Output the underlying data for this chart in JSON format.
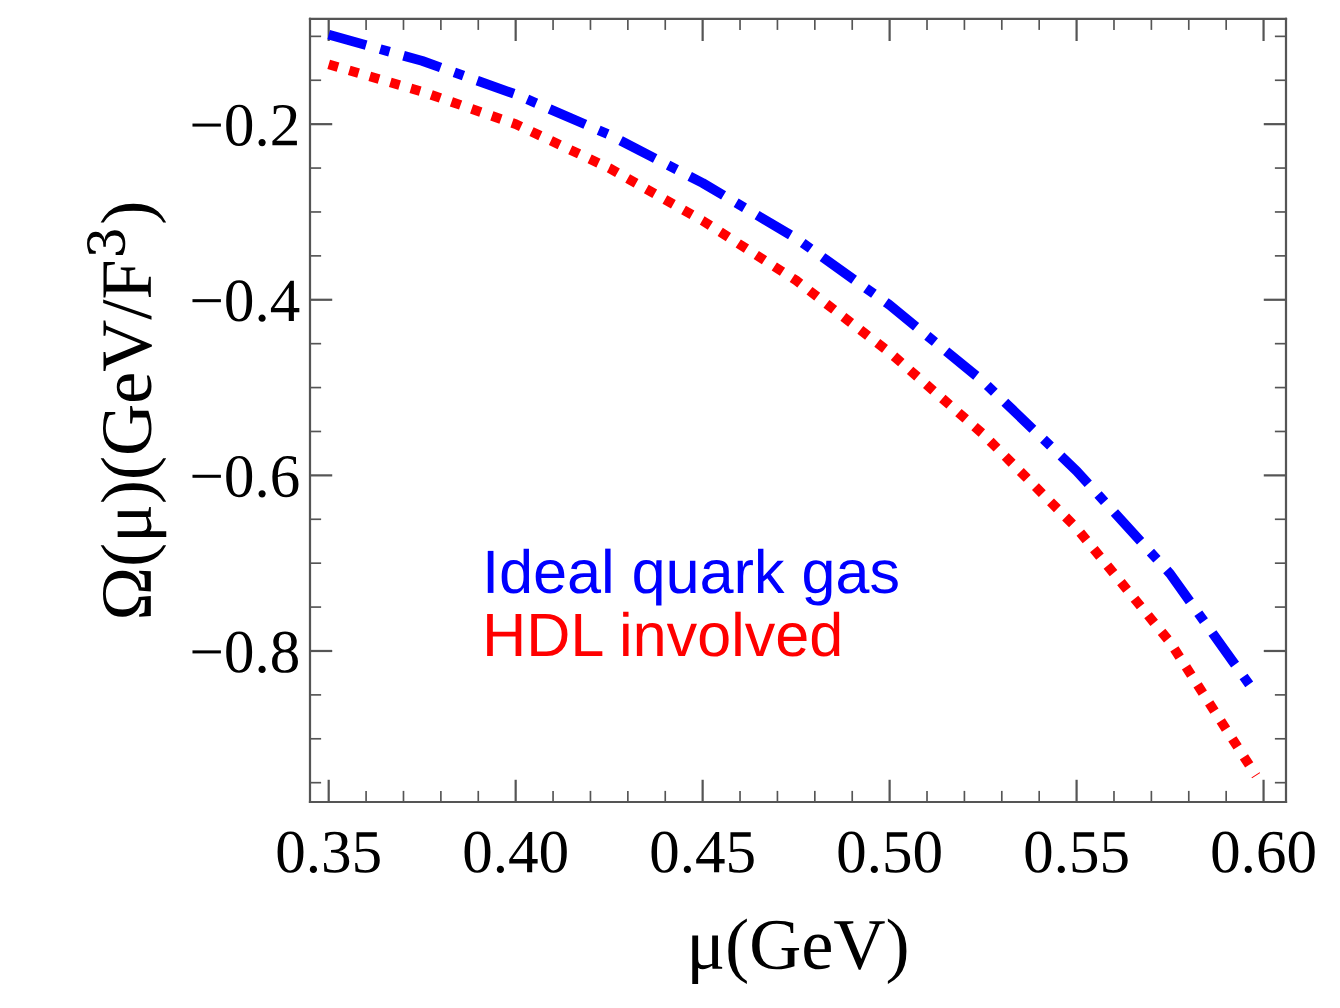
{
  "chart_data": {
    "type": "line",
    "xlabel": "μ(GeV)",
    "ylabel": "Ω(μ)(GeV/F$^{3}$)",
    "series": [
      {
        "name": "Ideal quark gas",
        "color": "#0000ff",
        "line_style": "dashdot",
        "x": [
          0.35,
          0.375,
          0.4,
          0.425,
          0.45,
          0.475,
          0.5,
          0.525,
          0.55,
          0.575,
          0.598
        ],
        "values": [
          -0.098,
          -0.128,
          -0.166,
          -0.212,
          -0.267,
          -0.33,
          -0.406,
          -0.493,
          -0.595,
          -0.712,
          -0.849
        ]
      },
      {
        "name": "HDL involved",
        "color": "#ff0000",
        "line_style": "dotted",
        "x": [
          0.35,
          0.375,
          0.4,
          0.425,
          0.45,
          0.475,
          0.5,
          0.525,
          0.55,
          0.575,
          0.598
        ],
        "values": [
          -0.132,
          -0.163,
          -0.2,
          -0.25,
          -0.31,
          -0.378,
          -0.46,
          -0.553,
          -0.66,
          -0.79,
          -0.942
        ]
      }
    ],
    "legend": "bottom left",
    "grid": false,
    "xlim": [
      0.345,
      0.606
    ],
    "ylim": [
      -0.972,
      -0.08
    ],
    "xticks": [
      {
        "value": 0.35,
        "label": "0.35"
      },
      {
        "value": 0.36,
        "label": null
      },
      {
        "value": 0.37,
        "label": null
      },
      {
        "value": 0.38,
        "label": null
      },
      {
        "value": 0.39,
        "label": null
      },
      {
        "value": 0.4,
        "label": "0.40"
      },
      {
        "value": 0.41,
        "label": null
      },
      {
        "value": 0.42,
        "label": null
      },
      {
        "value": 0.43,
        "label": null
      },
      {
        "value": 0.44,
        "label": null
      },
      {
        "value": 0.45,
        "label": "0.45"
      },
      {
        "value": 0.46,
        "label": null
      },
      {
        "value": 0.47,
        "label": null
      },
      {
        "value": 0.48,
        "label": null
      },
      {
        "value": 0.49,
        "label": null
      },
      {
        "value": 0.5,
        "label": "0.50"
      },
      {
        "value": 0.51,
        "label": null
      },
      {
        "value": 0.52,
        "label": null
      },
      {
        "value": 0.53,
        "label": null
      },
      {
        "value": 0.54,
        "label": null
      },
      {
        "value": 0.55,
        "label": "0.55"
      },
      {
        "value": 0.56,
        "label": null
      },
      {
        "value": 0.57,
        "label": null
      },
      {
        "value": 0.58,
        "label": null
      },
      {
        "value": 0.59,
        "label": null
      },
      {
        "value": 0.6,
        "label": "0.60"
      }
    ],
    "yticks": [
      {
        "value": -0.95,
        "label": null
      },
      {
        "value": -0.9,
        "label": null
      },
      {
        "value": -0.85,
        "label": null
      },
      {
        "value": -0.8,
        "label": "−0.8"
      },
      {
        "value": -0.75,
        "label": null
      },
      {
        "value": -0.7,
        "label": null
      },
      {
        "value": -0.65,
        "label": null
      },
      {
        "value": -0.6,
        "label": "−0.6"
      },
      {
        "value": -0.55,
        "label": null
      },
      {
        "value": -0.5,
        "label": null
      },
      {
        "value": -0.45,
        "label": null
      },
      {
        "value": -0.4,
        "label": "−0.4"
      },
      {
        "value": -0.35,
        "label": null
      },
      {
        "value": -0.3,
        "label": null
      },
      {
        "value": -0.25,
        "label": null
      },
      {
        "value": -0.2,
        "label": "−0.2"
      },
      {
        "value": -0.15,
        "label": null
      },
      {
        "value": -0.1,
        "label": null
      }
    ]
  }
}
